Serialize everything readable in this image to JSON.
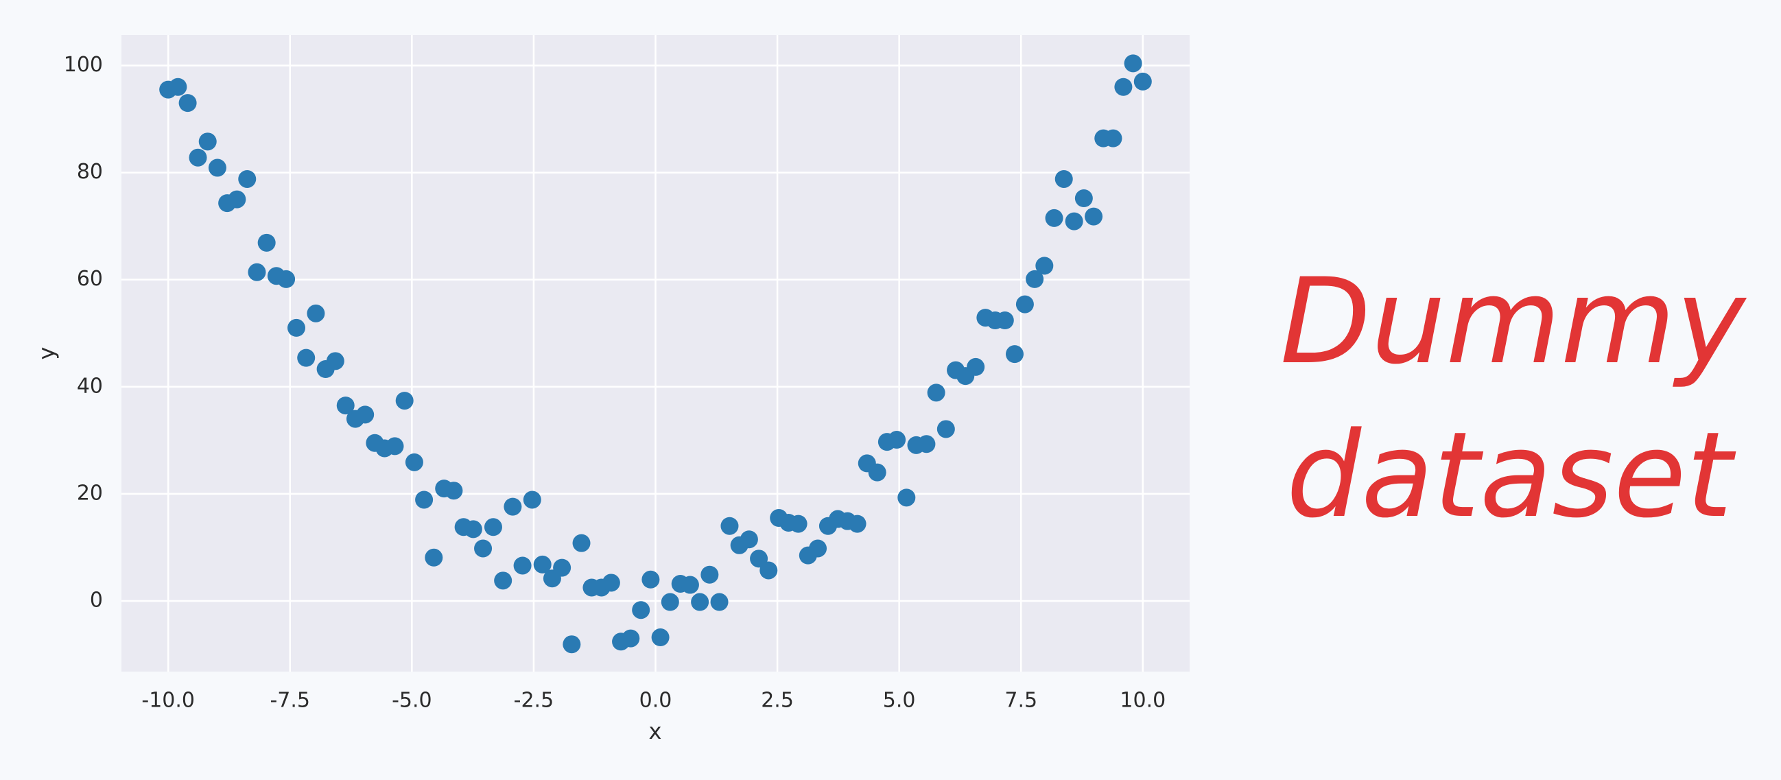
{
  "chart_data": {
    "type": "scatter",
    "x_label": "x",
    "y_label": "y",
    "annotation_lines": [
      "Dummy",
      "dataset"
    ],
    "annotation_color": "#e23535",
    "color": "#2a7ab3",
    "grid": true,
    "xlim": [
      -10.96,
      10.96
    ],
    "ylim": [
      -13.2,
      105.7
    ],
    "xticks": [
      {
        "value": -10,
        "label": "-10.0"
      },
      -7.5,
      {
        "value": -5,
        "label": "-5.0"
      },
      -2.5,
      {
        "value": 0,
        "label": "0.0"
      },
      2.5,
      {
        "value": 5,
        "label": "5.0"
      },
      7.5,
      {
        "value": 10,
        "label": "10.0"
      }
    ],
    "yticks": [
      0,
      20,
      40,
      60,
      80,
      100
    ],
    "x": [
      -10.0,
      -9.8,
      -9.6,
      -9.39,
      -9.19,
      -8.99,
      -8.79,
      -8.59,
      -8.38,
      -8.18,
      -7.98,
      -7.78,
      -7.58,
      -7.37,
      -7.17,
      -6.97,
      -6.77,
      -6.57,
      -6.36,
      -6.16,
      -5.96,
      -5.76,
      -5.56,
      -5.35,
      -5.15,
      -4.95,
      -4.75,
      -4.55,
      -4.34,
      -4.14,
      -3.94,
      -3.74,
      -3.54,
      -3.33,
      -3.13,
      -2.93,
      -2.73,
      -2.53,
      -2.32,
      -2.12,
      -1.92,
      -1.72,
      -1.52,
      -1.31,
      -1.11,
      -0.91,
      -0.71,
      -0.51,
      -0.3,
      -0.1,
      0.1,
      0.3,
      0.51,
      0.71,
      0.91,
      1.11,
      1.31,
      1.52,
      1.72,
      1.92,
      2.12,
      2.32,
      2.53,
      2.73,
      2.93,
      3.13,
      3.33,
      3.54,
      3.74,
      3.94,
      4.14,
      4.34,
      4.55,
      4.75,
      4.95,
      5.15,
      5.35,
      5.56,
      5.76,
      5.96,
      6.16,
      6.36,
      6.57,
      6.77,
      6.97,
      7.17,
      7.37,
      7.58,
      7.78,
      7.98,
      8.18,
      8.38,
      8.59,
      8.79,
      8.99,
      9.19,
      9.39,
      9.6,
      9.8,
      10.0
    ],
    "values": [
      95.5,
      96,
      93,
      82.8,
      85.8,
      80.9,
      74.3,
      75,
      78.8,
      61.4,
      66.9,
      60.7,
      60.1,
      51,
      45.4,
      53.7,
      43.3,
      44.8,
      36.5,
      34,
      34.8,
      29.5,
      28.5,
      28.9,
      37.4,
      25.9,
      18.9,
      8.1,
      21,
      20.6,
      13.8,
      13.4,
      9.8,
      13.8,
      3.8,
      17.6,
      6.6,
      18.9,
      6.8,
      4.2,
      6.2,
      -8.1,
      10.8,
      2.5,
      2.5,
      3.4,
      -7.6,
      -7,
      -1.7,
      4,
      -6.8,
      -0.2,
      3.2,
      3,
      -0.2,
      4.9,
      -0.2,
      14,
      10.4,
      11.5,
      7.9,
      5.7,
      15.5,
      14.6,
      14.4,
      8.5,
      9.8,
      14,
      15.3,
      14.9,
      14.4,
      25.7,
      24,
      29.7,
      30.1,
      19.3,
      29.1,
      29.3,
      38.9,
      32.1,
      43.1,
      42,
      43.7,
      52.9,
      52.4,
      52.4,
      46.1,
      55.4,
      60.1,
      62.6,
      71.5,
      78.8,
      70.9,
      75.2,
      71.8,
      86.4,
      86.4,
      96,
      100.4,
      97
    ]
  }
}
